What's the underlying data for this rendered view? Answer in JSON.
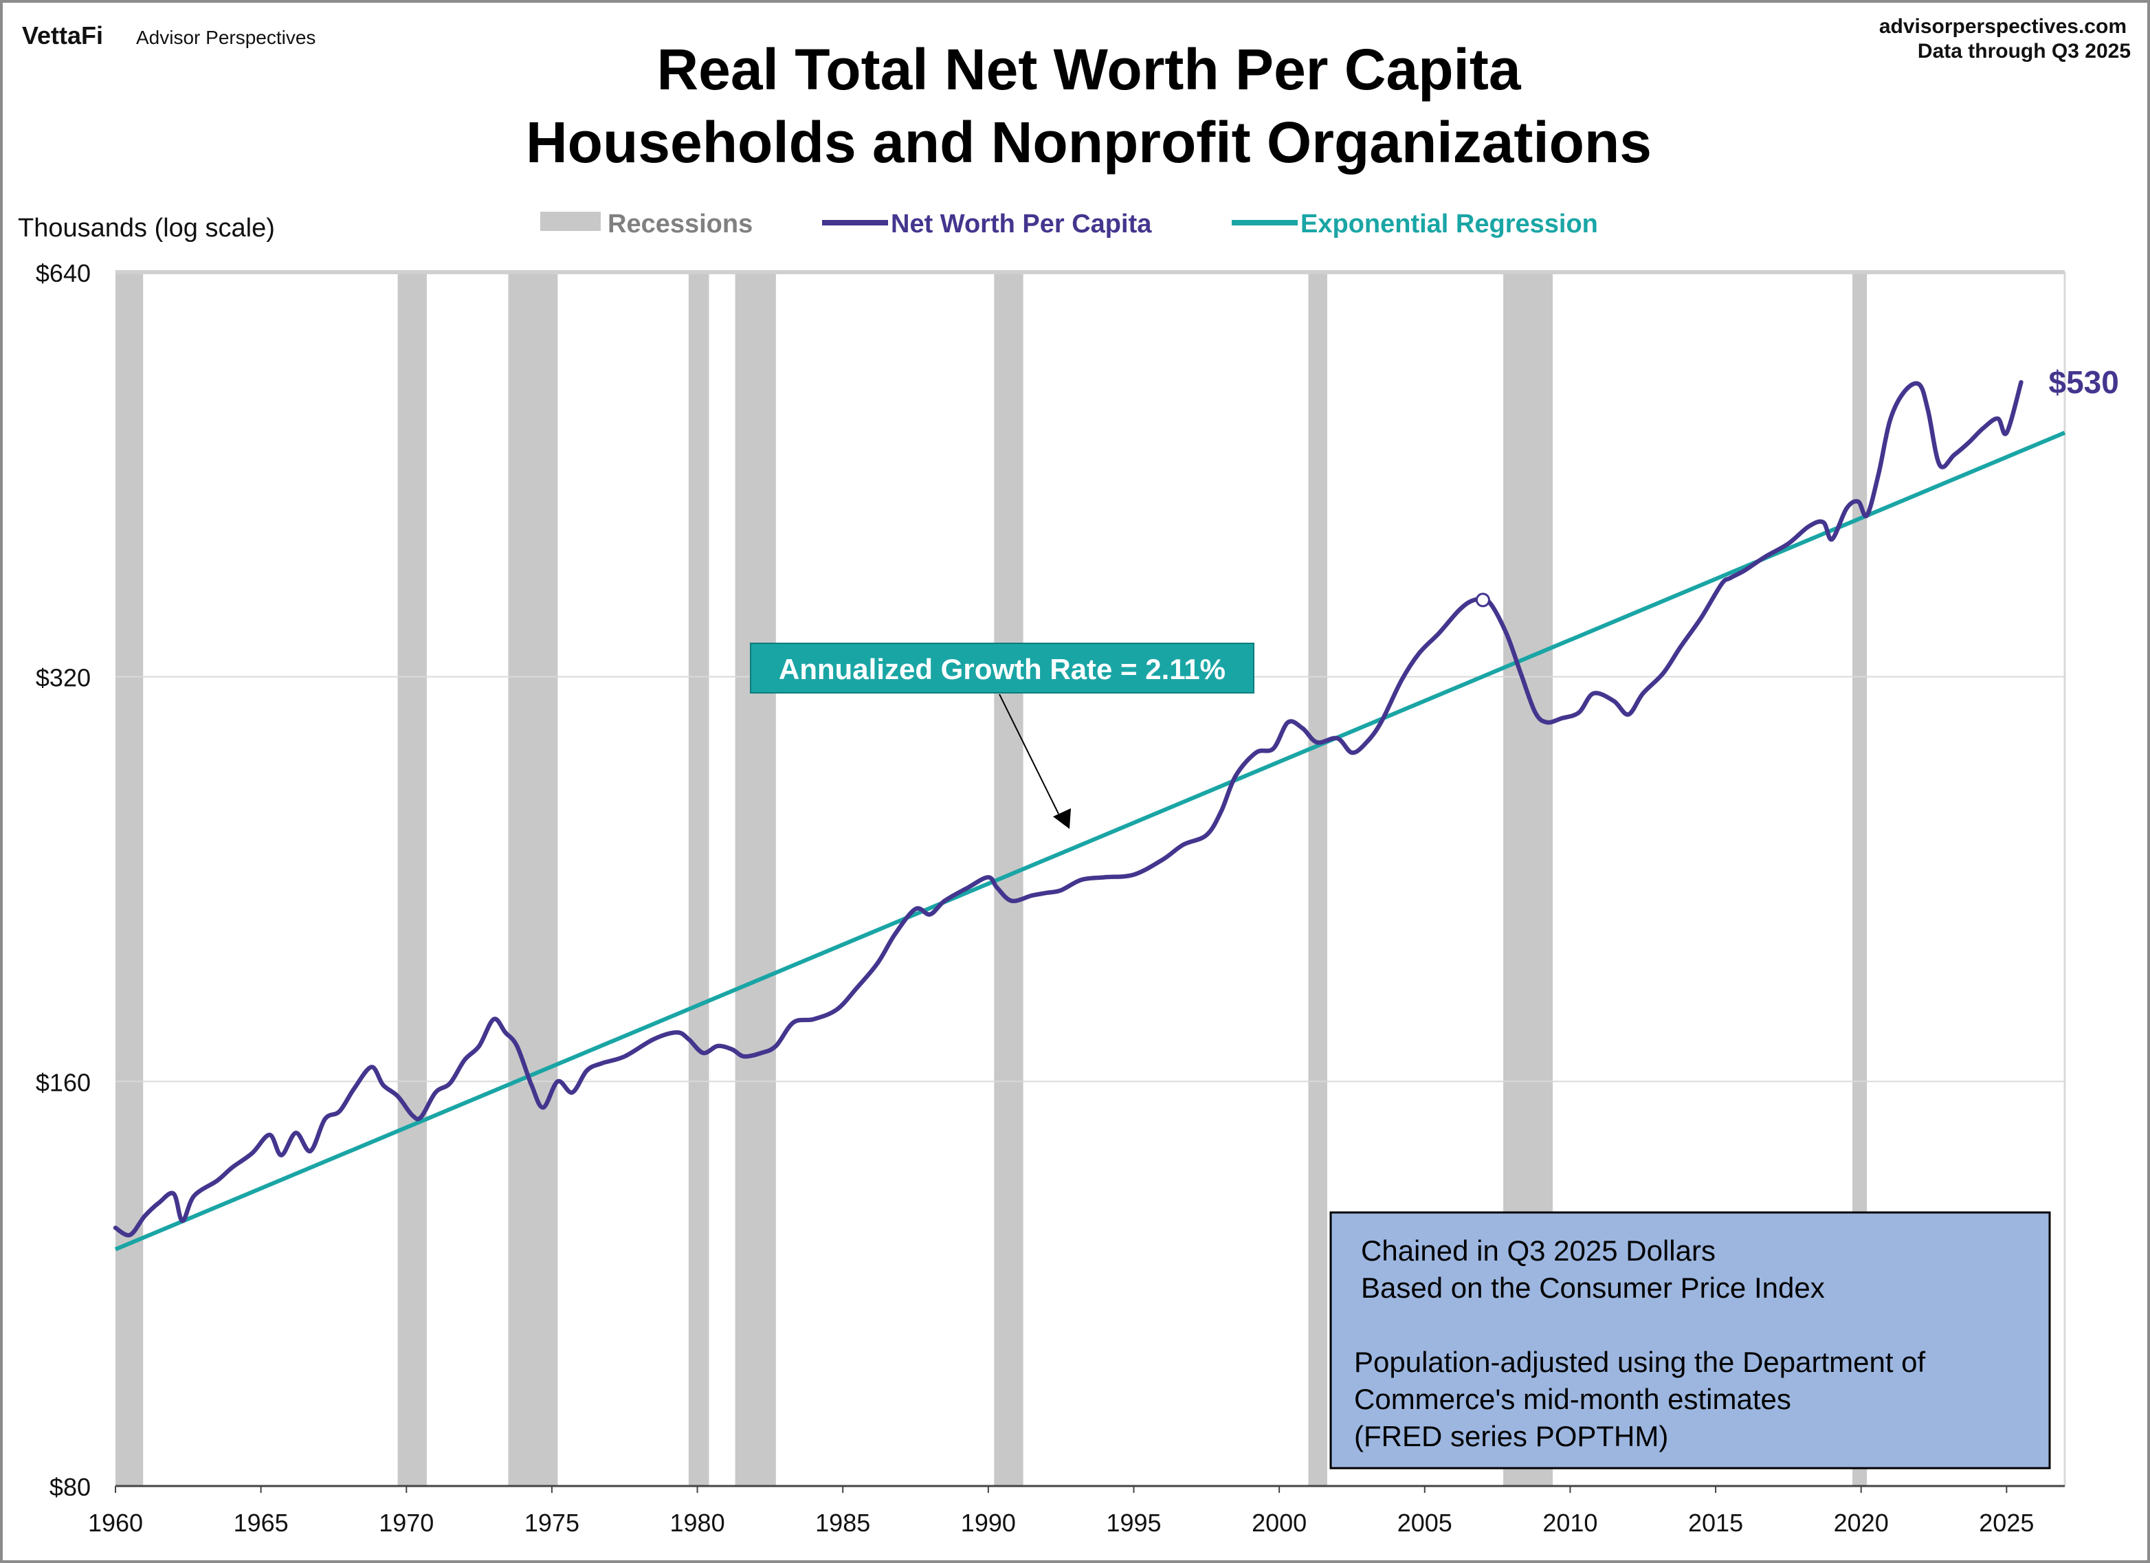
{
  "header": {
    "brand_logo": "VettaFi",
    "brand_name": "Advisor Perspectives",
    "site": "advisorperspectives.com",
    "data_through": "Data through  Q3 2025"
  },
  "colors": {
    "net_worth": "#44358e",
    "regression": "#1aa5a5",
    "recession": "#c8c8c8",
    "note_box": "#9cb6df",
    "grid": "#d9d9d9"
  },
  "chart_data": {
    "type": "line",
    "title": "Real Total Net Worth Per Capita",
    "subtitle": "Households and Nonprofit Organizations",
    "ylabel": "Thousands (log scale)",
    "xlabel": "",
    "y_scale": "log2",
    "ylim": [
      80,
      640
    ],
    "xlim": [
      1960,
      2027
    ],
    "y_ticks": [
      {
        "value": 640,
        "label": "$640"
      },
      {
        "value": 320,
        "label": "$320"
      },
      {
        "value": 160,
        "label": "$160"
      },
      {
        "value": 80,
        "label": "$80"
      }
    ],
    "x_ticks": [
      "1960",
      "1965",
      "1970",
      "1975",
      "1980",
      "1985",
      "1990",
      "1995",
      "2000",
      "2005",
      "2010",
      "2015",
      "2020",
      "2025"
    ],
    "grid": "horizontal",
    "legend_placement": "top",
    "legend": [
      "Recessions",
      "Net Worth Per Capita",
      "Exponential Regression"
    ],
    "recessions": [
      [
        1960.0,
        1960.95
      ],
      [
        1969.7,
        1970.7
      ],
      [
        1973.5,
        1975.2
      ],
      [
        1979.7,
        1980.4
      ],
      [
        1981.3,
        1982.7
      ],
      [
        1990.2,
        1991.2
      ],
      [
        2001.0,
        2001.65
      ],
      [
        2007.7,
        2009.4
      ],
      [
        2019.7,
        2020.2
      ]
    ],
    "series": [
      {
        "name": "Net Worth Per Capita",
        "x": [
          1960.0,
          1960.5,
          1961.0,
          1961.5,
          1962.0,
          1962.3,
          1962.7,
          1963.5,
          1964.0,
          1964.7,
          1965.3,
          1965.7,
          1966.2,
          1966.7,
          1967.2,
          1967.7,
          1968.2,
          1968.8,
          1969.2,
          1969.7,
          1970.2,
          1970.5,
          1971.0,
          1971.5,
          1972.0,
          1972.5,
          1973.0,
          1973.4,
          1973.8,
          1974.3,
          1974.7,
          1975.2,
          1975.7,
          1976.2,
          1976.7,
          1977.5,
          1978.5,
          1979.3,
          1979.7,
          1980.2,
          1980.7,
          1981.2,
          1981.6,
          1982.2,
          1982.7,
          1983.3,
          1984.0,
          1984.8,
          1985.5,
          1986.2,
          1986.8,
          1987.5,
          1988.0,
          1988.5,
          1989.3,
          1990.0,
          1990.3,
          1990.8,
          1991.5,
          1992.0,
          1992.5,
          1993.2,
          1994.0,
          1995.0,
          1996.0,
          1996.7,
          1997.5,
          1998.0,
          1998.5,
          1999.2,
          1999.8,
          2000.3,
          2000.8,
          2001.3,
          2002.0,
          2002.5,
          2003.0,
          2003.5,
          2004.2,
          2004.8,
          2005.5,
          2006.2,
          2006.7,
          2007.2,
          2007.8,
          2008.3,
          2008.8,
          2009.2,
          2009.7,
          2010.3,
          2010.8,
          2011.5,
          2012.0,
          2012.5,
          2013.2,
          2013.8,
          2014.5,
          2015.2,
          2015.5,
          2016.0,
          2016.7,
          2017.5,
          2018.2,
          2018.7,
          2019.0,
          2019.5,
          2019.9,
          2020.2,
          2020.6,
          2021.0,
          2021.5,
          2022.0,
          2022.3,
          2022.7,
          2023.2,
          2023.7,
          2024.2,
          2024.7,
          2025.0,
          2025.5
        ],
        "y": [
          124.5,
          123,
          127,
          130,
          132,
          126,
          131.5,
          135,
          138,
          141.5,
          146,
          141,
          146.5,
          142,
          150,
          152,
          158,
          164,
          159,
          156,
          151,
          150.5,
          157,
          159.5,
          166,
          170,
          178,
          174,
          170,
          159,
          153,
          160,
          157,
          163,
          165,
          167,
          172,
          174,
          172,
          168,
          170,
          169,
          167,
          168,
          170,
          177,
          178,
          181,
          188,
          196,
          206,
          215,
          213,
          218,
          223,
          227,
          223,
          218,
          220,
          221,
          222,
          226,
          227,
          228,
          234,
          240,
          244,
          254,
          270,
          281,
          283,
          296,
          293,
          286,
          288,
          281,
          286,
          296,
          318,
          333,
          345,
          359,
          365,
          364,
          345,
          322,
          301,
          296,
          298,
          301,
          311,
          307,
          300,
          311,
          322,
          337,
          354,
          375,
          379,
          384,
          393,
          402,
          414,
          417,
          405,
          427,
          432,
          422,
          453,
          497,
          522,
          528,
          505,
          460,
          468,
          478,
          490,
          498,
          486,
          530
        ]
      },
      {
        "name": "Exponential Regression",
        "start": [
          1960,
          120
        ],
        "annual_growth_rate_pct": 2.11
      }
    ],
    "annotations": [
      {
        "text": "Annualized Growth Rate = 2.11%"
      },
      {
        "text": "$530",
        "x": 2025.5,
        "y": 530
      },
      {
        "marker": "peak",
        "x": 2007.0,
        "y": 365
      }
    ]
  },
  "note_box": {
    "line1": "Chained in Q3 2025 Dollars",
    "line2": "Based on the Consumer Price Index",
    "line3": "Population-adjusted using the Department of",
    "line4": "Commerce's mid-month estimates",
    "line5": "(FRED series POPTHM)"
  }
}
